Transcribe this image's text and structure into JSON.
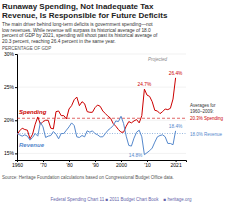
{
  "chart_data": {
    "type": "line",
    "title": "Runaway Spending, Not Inadequate Tax\nRevenue, Is Responsible for Future Deficits",
    "subtitle": "The main driver behind long-term deficits is government spending—not\nlow revenues. While revenue will surpass its historical average of 18.0\npercent of GDP by 2021, spending will shoot past its historical average of\n20.3 percent, reaching 26.4 percent in the same year.",
    "ylabel": "PERCENTAGE OF GDP",
    "source": "Source: Heritage Foundation calculations based on Congressional Budget Office data.",
    "footer": "Federal Spending Chart 11 ■ 2011 Budget Chart Book    ■ heritage.org",
    "x": [
      1960,
      1961,
      1962,
      1963,
      1964,
      1965,
      1966,
      1967,
      1968,
      1969,
      1970,
      1971,
      1972,
      1973,
      1974,
      1975,
      1976,
      1977,
      1978,
      1979,
      1980,
      1981,
      1982,
      1983,
      1984,
      1985,
      1986,
      1987,
      1988,
      1989,
      1990,
      1991,
      1992,
      1993,
      1994,
      1995,
      1996,
      1997,
      1998,
      1999,
      2000,
      2001,
      2002,
      2003,
      2004,
      2005,
      2006,
      2007,
      2008,
      2009,
      2010,
      2011,
      2012,
      2013,
      2014,
      2015,
      2016,
      2017,
      2018,
      2019,
      2020,
      2021
    ],
    "xlim": [
      1960,
      2025
    ],
    "xticks": [
      1960,
      {
        "value": 1970,
        "label": "'70"
      },
      {
        "value": 1980,
        "label": "'80"
      },
      {
        "value": 1990,
        "label": "'90"
      },
      2000,
      {
        "value": 2010,
        "label": "'10"
      },
      2021
    ],
    "ylim": [
      14,
      30
    ],
    "yticks": [
      {
        "value": 15,
        "label": "15%"
      },
      {
        "value": 20,
        "label": "20%"
      },
      {
        "value": 25,
        "label": "25%"
      },
      {
        "value": 30,
        "label": "30%"
      }
    ],
    "grid": true,
    "averages_title": "Averages for\n1960–2009:",
    "series": [
      {
        "name": "Spending",
        "color": "#cc0000",
        "values": [
          17.8,
          18.4,
          18.8,
          18.6,
          18.5,
          17.2,
          17.9,
          19.4,
          20.5,
          19.4,
          19.8,
          20.0,
          20.0,
          18.8,
          18.7,
          21.3,
          21.4,
          20.7,
          20.7,
          20.2,
          21.7,
          22.2,
          23.1,
          23.5,
          22.2,
          22.8,
          22.5,
          21.3,
          21.2,
          21.2,
          21.9,
          22.3,
          22.1,
          21.4,
          21.0,
          20.6,
          20.3,
          19.5,
          19.1,
          18.6,
          18.2,
          18.2,
          19.1,
          19.8,
          19.6,
          19.9,
          20.1,
          19.6,
          20.7,
          24.7,
          23.8,
          23.6,
          22.8,
          21.5,
          21.4,
          21.0,
          21.3,
          21.7,
          21.6,
          21.8,
          23.2,
          26.4
        ],
        "average": 20.3,
        "average_label": "20.3% Spending",
        "annotations": [
          {
            "text": "24.7%",
            "x": 2009,
            "y": 24.7
          },
          {
            "text": "26.4%",
            "x": 2021,
            "y": 26.4
          }
        ]
      },
      {
        "name": "Revenue",
        "color": "#5588cc",
        "values": [
          18.0,
          17.8,
          17.6,
          17.8,
          17.6,
          17.0,
          17.4,
          18.0,
          17.6,
          19.7,
          19.0,
          17.4,
          17.6,
          17.7,
          18.3,
          17.9,
          17.2,
          18.0,
          18.0,
          18.5,
          19.0,
          19.6,
          19.2,
          17.5,
          17.4,
          17.7,
          17.5,
          18.4,
          18.2,
          18.4,
          18.0,
          17.8,
          17.5,
          17.5,
          18.0,
          18.5,
          18.8,
          19.2,
          19.9,
          19.8,
          20.6,
          19.5,
          17.6,
          16.2,
          16.1,
          17.3,
          18.2,
          18.5,
          17.5,
          14.8,
          15.1,
          15.4,
          15.8,
          16.7,
          17.5,
          17.7,
          17.8,
          17.5,
          16.5,
          16.5,
          16.3,
          18.4
        ],
        "average": 18.0,
        "average_label": "18.0% Revenue",
        "annotations": [
          {
            "text": "18.4%",
            "x": 2021,
            "y": 18.4
          },
          {
            "text": "14.8%",
            "x": 2009,
            "y": 14.8
          }
        ]
      }
    ],
    "annotations": [
      {
        "text": "Projected",
        "x": 2010
      }
    ]
  }
}
